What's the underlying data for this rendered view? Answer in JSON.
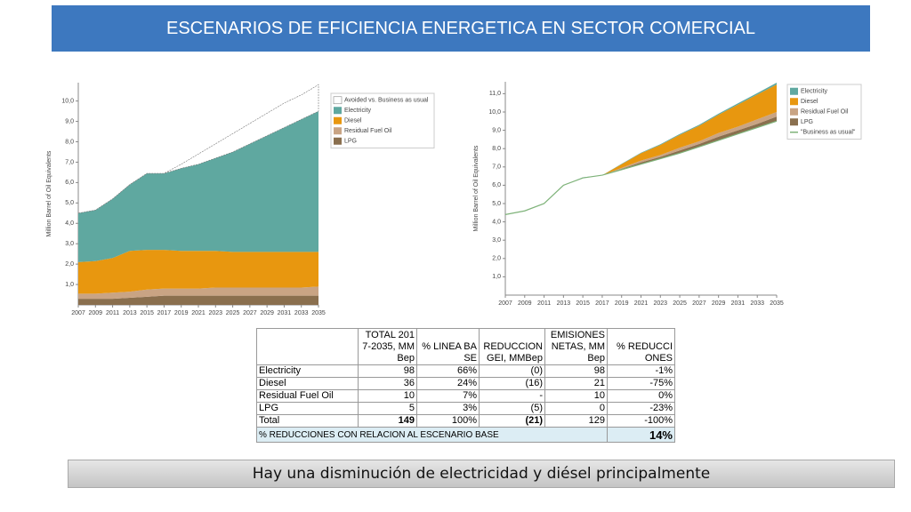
{
  "header": {
    "title": "ESCENARIOS DE EFICIENCIA ENERGETICA EN SECTOR COMERCIAL"
  },
  "chart_data": [
    {
      "type": "area",
      "y_label": "Million Barrel of Oil Equivalents",
      "x": [
        2007,
        2009,
        2011,
        2013,
        2015,
        2017,
        2019,
        2021,
        2023,
        2025,
        2027,
        2029,
        2031,
        2033,
        2035
      ],
      "xlim": [
        2007,
        2035
      ],
      "xticks": [
        2007,
        2009,
        2011,
        2013,
        2015,
        2017,
        2019,
        2021,
        2023,
        2025,
        2027,
        2029,
        2031,
        2033,
        2035
      ],
      "ylim": [
        0,
        10.9
      ],
      "yticks": [
        {
          "value": 1,
          "label": "1,0"
        },
        {
          "value": 2,
          "label": "2,0"
        },
        {
          "value": 3,
          "label": "3,0"
        },
        {
          "value": 4,
          "label": "4,0"
        },
        {
          "value": 5,
          "label": "5,0"
        },
        {
          "value": 6,
          "label": "6,0"
        },
        {
          "value": 7,
          "label": "7,0"
        },
        {
          "value": 8,
          "label": "8,0"
        },
        {
          "value": 9,
          "label": "9,0"
        },
        {
          "value": 10,
          "label": "10,0"
        }
      ],
      "series": [
        {
          "name": "Avoided vs. Business as usual",
          "color": "#ffffff",
          "values": [
            0,
            0,
            0,
            0,
            0,
            0,
            0.2,
            0.5,
            0.7,
            0.9,
            1.0,
            1.1,
            1.2,
            1.2,
            1.3
          ]
        },
        {
          "name": "Electricity",
          "color": "#5fa8a0",
          "values": [
            2.4,
            2.5,
            2.9,
            3.25,
            3.75,
            3.75,
            4.05,
            4.25,
            4.55,
            4.9,
            5.3,
            5.7,
            6.1,
            6.5,
            6.9
          ]
        },
        {
          "name": "Diesel",
          "color": "#e8970f",
          "values": [
            1.55,
            1.6,
            1.7,
            2.0,
            1.95,
            1.9,
            1.85,
            1.85,
            1.8,
            1.75,
            1.75,
            1.75,
            1.75,
            1.75,
            1.7
          ]
        },
        {
          "name": "Residual Fuel Oil",
          "color": "#c9a484",
          "values": [
            0.25,
            0.25,
            0.3,
            0.3,
            0.35,
            0.35,
            0.35,
            0.35,
            0.4,
            0.4,
            0.4,
            0.4,
            0.4,
            0.4,
            0.45
          ]
        },
        {
          "name": "LPG",
          "color": "#8a6f4e",
          "values": [
            0.3,
            0.3,
            0.3,
            0.35,
            0.4,
            0.45,
            0.45,
            0.45,
            0.45,
            0.45,
            0.45,
            0.45,
            0.45,
            0.45,
            0.45
          ]
        }
      ]
    },
    {
      "type": "area",
      "y_label": "Million Barrel of Oil Equivalents",
      "x": [
        2007,
        2009,
        2011,
        2013,
        2015,
        2017,
        2019,
        2021,
        2023,
        2025,
        2027,
        2029,
        2031,
        2033,
        2035
      ],
      "xlim": [
        2007,
        2035
      ],
      "xticks": [
        2007,
        2009,
        2011,
        2013,
        2015,
        2017,
        2019,
        2021,
        2023,
        2025,
        2027,
        2029,
        2031,
        2033,
        2035
      ],
      "ylim": [
        0,
        11.65
      ],
      "yticks": [
        {
          "value": 1,
          "label": "1,0"
        },
        {
          "value": 2,
          "label": "2,0"
        },
        {
          "value": 3,
          "label": "3,0"
        },
        {
          "value": 4,
          "label": "4,0"
        },
        {
          "value": 5,
          "label": "5,0"
        },
        {
          "value": 6,
          "label": "6,0"
        },
        {
          "value": 7,
          "label": "7,0"
        },
        {
          "value": 8,
          "label": "8,0"
        },
        {
          "value": 9,
          "label": "9,0"
        },
        {
          "value": 10,
          "label": "10,0"
        },
        {
          "value": 11,
          "label": "11,0"
        }
      ],
      "series": [
        {
          "name": "Electricity",
          "color": "#5fa8a0",
          "values": [
            0,
            0,
            0,
            0,
            0.03,
            0,
            0.02,
            0.03,
            0.04,
            0.05,
            0.05,
            0.06,
            0.07,
            0.08,
            0.1
          ]
        },
        {
          "name": "Diesel",
          "color": "#e8970f",
          "values": [
            0,
            0,
            0,
            0,
            0,
            0,
            0.2,
            0.4,
            0.55,
            0.7,
            0.85,
            1.0,
            1.2,
            1.35,
            1.5
          ]
        },
        {
          "name": "Residual Fuel Oil",
          "color": "#c9a484",
          "values": [
            0,
            0,
            0,
            0,
            0,
            0,
            0.05,
            0.1,
            0.1,
            0.15,
            0.15,
            0.2,
            0.2,
            0.25,
            0.25
          ]
        },
        {
          "name": "LPG",
          "color": "#8a6f4e",
          "values": [
            0,
            0,
            0,
            0,
            0,
            0,
            0.05,
            0.1,
            0.1,
            0.15,
            0.15,
            0.2,
            0.2,
            0.2,
            0.25
          ]
        },
        {
          "name": "\"Business as usual\"",
          "type": "line",
          "color": "#7fb37a",
          "values": [
            4.4,
            4.6,
            5.0,
            6.0,
            6.4,
            6.55,
            6.85,
            7.15,
            7.45,
            7.75,
            8.1,
            8.45,
            8.8,
            9.15,
            9.5
          ]
        }
      ]
    }
  ],
  "table": {
    "columns": [
      "",
      "TOTAL 2017-2035, MMBep",
      "% LINEA BASE",
      "REDUCCION GEI, MMBep",
      "EMISIONES NETAS, MMBep",
      "% REDUCCIONES"
    ],
    "rows": [
      [
        "Electricity",
        "98",
        "66%",
        "(0)",
        "98",
        "-1%"
      ],
      [
        "Diesel",
        "36",
        "24%",
        "(16)",
        "21",
        "-75%"
      ],
      [
        "Residual Fuel Oil",
        "10",
        "7%",
        "-",
        "10",
        "0%"
      ],
      [
        "LPG",
        "5",
        "3%",
        "(5)",
        "0",
        "-23%"
      ],
      [
        "Total",
        "149",
        "100%",
        "(21)",
        "129",
        "-100%"
      ]
    ],
    "footer": {
      "label": "% REDUCCIONES CON RELACION AL ESCENARIO BASE",
      "value": "14%"
    }
  },
  "caption": "Hay una disminución de electricidad y diésel principalmente"
}
